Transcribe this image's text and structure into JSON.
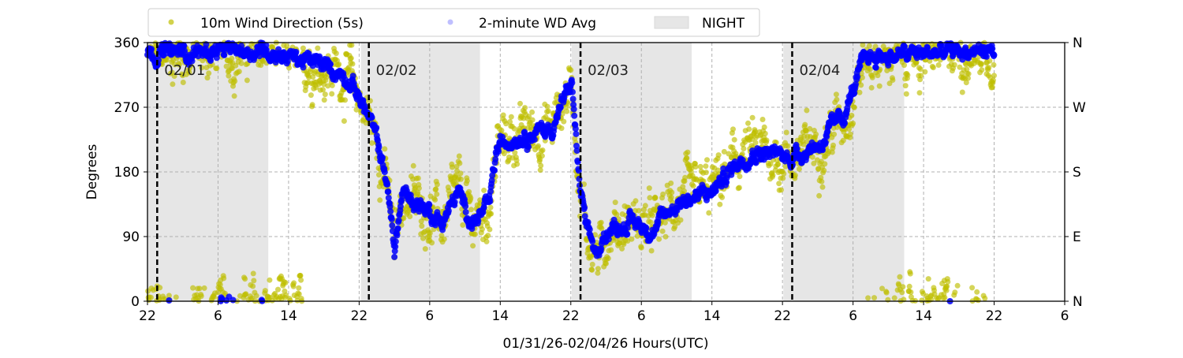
{
  "chart_data": {
    "type": "scatter",
    "xlabel": "01/31/26-02/04/26  Hours(UTC)",
    "ylabel": "Degrees",
    "ylim": [
      0,
      360
    ],
    "x_hours_range": [
      0,
      104
    ],
    "x_start_hour_utc": 22,
    "x_tick_labels": [
      "22",
      "6",
      "14",
      "22",
      "6",
      "14",
      "22",
      "6",
      "14",
      "22",
      "6",
      "14",
      "22",
      "6"
    ],
    "y_ticks": [
      0,
      90,
      180,
      270,
      360
    ],
    "y_right_labels": [
      "N",
      "E",
      "S",
      "W",
      "N"
    ],
    "grid": true,
    "legend": {
      "placement": "top-outside",
      "entries": [
        "10m Wind Direction (5s)",
        "2-minute WD Avg",
        "NIGHT"
      ]
    },
    "day_markers": [
      {
        "hour": 1.1,
        "label": "02/01"
      },
      {
        "hour": 25.1,
        "label": "02/02"
      },
      {
        "hour": 49.1,
        "label": "02/03"
      },
      {
        "hour": 73.1,
        "label": "02/04"
      }
    ],
    "night_periods": [
      [
        0,
        13.7
      ],
      [
        24.2,
        37.7
      ],
      [
        48.1,
        61.7
      ],
      [
        72.1,
        85.8
      ]
    ],
    "series": [
      {
        "name": "10m Wind Direction (5s)",
        "color": "#bfbf00",
        "noise_deg": 35
      },
      {
        "name": "2-minute WD Avg",
        "color": "#0000ff",
        "noise_deg": 14
      }
    ],
    "trend_knots": [
      [
        0,
        345
      ],
      [
        13.7,
        350
      ],
      [
        19.1,
        330
      ],
      [
        22.6,
        315
      ],
      [
        24,
        285
      ],
      [
        25.3,
        250
      ],
      [
        26.2,
        215
      ],
      [
        27.1,
        170
      ],
      [
        28,
        70
      ],
      [
        28.9,
        150
      ],
      [
        31.6,
        130
      ],
      [
        33.4,
        110
      ],
      [
        35.2,
        150
      ],
      [
        36.9,
        110
      ],
      [
        38.7,
        130
      ],
      [
        39.6,
        210
      ],
      [
        41.4,
        230
      ],
      [
        45.8,
        240
      ],
      [
        48.1,
        305
      ],
      [
        49,
        160
      ],
      [
        49.9,
        90
      ],
      [
        51.3,
        60
      ],
      [
        52.1,
        100
      ],
      [
        54.8,
        110
      ],
      [
        57.5,
        100
      ],
      [
        60.2,
        140
      ],
      [
        63.8,
        150
      ],
      [
        67.4,
        200
      ],
      [
        69.1,
        210
      ],
      [
        72.7,
        200
      ],
      [
        76.3,
        220
      ],
      [
        79,
        260
      ],
      [
        80.8,
        320
      ],
      [
        81.7,
        340
      ],
      [
        96,
        350
      ]
    ]
  }
}
